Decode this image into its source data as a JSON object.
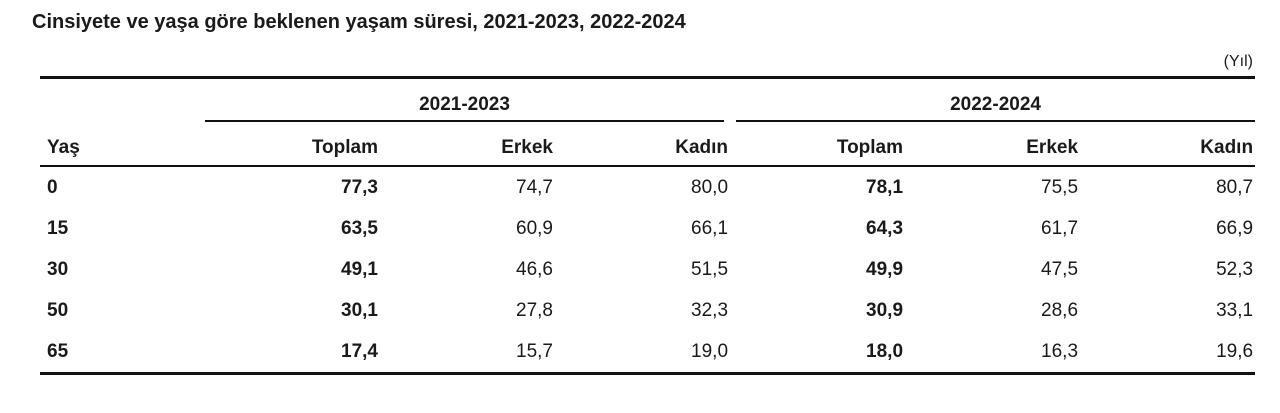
{
  "page": {
    "title": "Cinsiyete ve yaşa göre beklenen yaşam süresi, 2021-2023, 2022-2024",
    "unit_label": "(Yıl)"
  },
  "colors": {
    "text": "#1a1a1a",
    "rule_lines": "#111111",
    "background": "#ffffff"
  },
  "table": {
    "row_header": "Yaş",
    "groups": [
      {
        "label": "2021-2023",
        "columns": [
          "Toplam",
          "Erkek",
          "Kadın"
        ]
      },
      {
        "label": "2022-2024",
        "columns": [
          "Toplam",
          "Erkek",
          "Kadın"
        ]
      }
    ],
    "rows": [
      {
        "age": "0",
        "values": [
          "77,3",
          "74,7",
          "80,0",
          "78,1",
          "75,5",
          "80,7"
        ]
      },
      {
        "age": "15",
        "values": [
          "63,5",
          "60,9",
          "66,1",
          "64,3",
          "61,7",
          "66,9"
        ]
      },
      {
        "age": "30",
        "values": [
          "49,1",
          "46,6",
          "51,5",
          "49,9",
          "47,5",
          "52,3"
        ]
      },
      {
        "age": "50",
        "values": [
          "30,1",
          "27,8",
          "32,3",
          "30,9",
          "28,6",
          "33,1"
        ]
      },
      {
        "age": "65",
        "values": [
          "17,4",
          "15,7",
          "19,0",
          "18,0",
          "16,3",
          "19,6"
        ]
      }
    ]
  },
  "chart_data": {
    "type": "table",
    "title": "Cinsiyete ve yaşa göre beklenen yaşam süresi, 2021-2023, 2022-2024",
    "unit": "Yıl",
    "categories": [
      "0",
      "15",
      "30",
      "50",
      "65"
    ],
    "category_label": "Yaş",
    "series": [
      {
        "name": "2021-2023 Toplam",
        "values": [
          77.3,
          63.5,
          49.1,
          30.1,
          17.4
        ]
      },
      {
        "name": "2021-2023 Erkek",
        "values": [
          74.7,
          60.9,
          46.6,
          27.8,
          15.7
        ]
      },
      {
        "name": "2021-2023 Kadın",
        "values": [
          80.0,
          66.1,
          51.5,
          32.3,
          19.0
        ]
      },
      {
        "name": "2022-2024 Toplam",
        "values": [
          78.1,
          64.3,
          49.9,
          30.9,
          18.0
        ]
      },
      {
        "name": "2022-2024 Erkek",
        "values": [
          75.5,
          61.7,
          47.5,
          28.6,
          16.3
        ]
      },
      {
        "name": "2022-2024 Kadın",
        "values": [
          80.7,
          66.9,
          52.3,
          33.1,
          19.6
        ]
      }
    ]
  }
}
